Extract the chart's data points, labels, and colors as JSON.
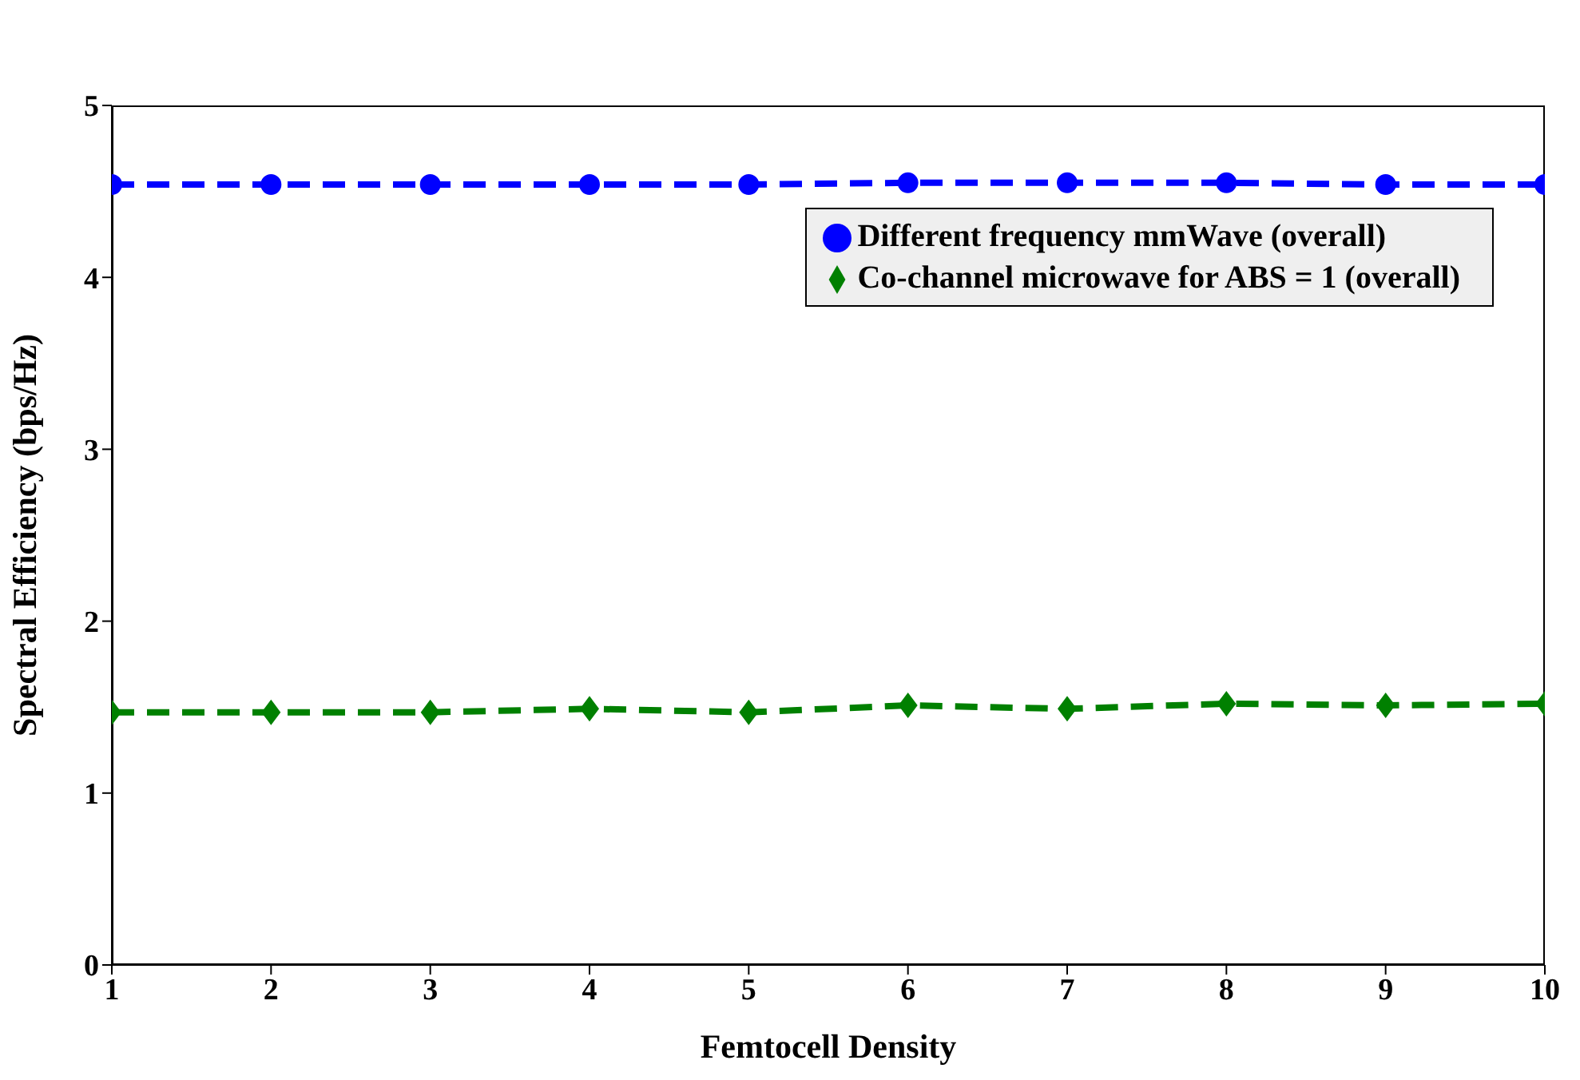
{
  "chart_data": {
    "type": "line",
    "xlabel": "Femtocell Density",
    "ylabel": "Spectral Efficiency (bps/Hz)",
    "x": [
      1,
      2,
      3,
      4,
      5,
      6,
      7,
      8,
      9,
      10
    ],
    "series": [
      {
        "name": "Different frequency mmWave (overall)",
        "color": "#0000ff",
        "marker": "circle",
        "line_style": "dashed",
        "values": [
          4.54,
          4.54,
          4.54,
          4.54,
          4.54,
          4.55,
          4.55,
          4.55,
          4.54,
          4.54
        ]
      },
      {
        "name": "Co-channel microwave for ABS = 1 (overall)",
        "color": "#008000",
        "marker": "diamond",
        "line_style": "dashed",
        "values": [
          1.47,
          1.47,
          1.47,
          1.49,
          1.47,
          1.51,
          1.49,
          1.52,
          1.51,
          1.52
        ]
      }
    ],
    "xlim": [
      1,
      10
    ],
    "xticks": [
      1,
      2,
      3,
      4,
      5,
      6,
      7,
      8,
      9,
      10
    ],
    "ylim": [
      0,
      5
    ],
    "yticks": [
      0,
      1,
      2,
      3,
      4,
      5
    ],
    "grid": false,
    "legend": "top right"
  }
}
